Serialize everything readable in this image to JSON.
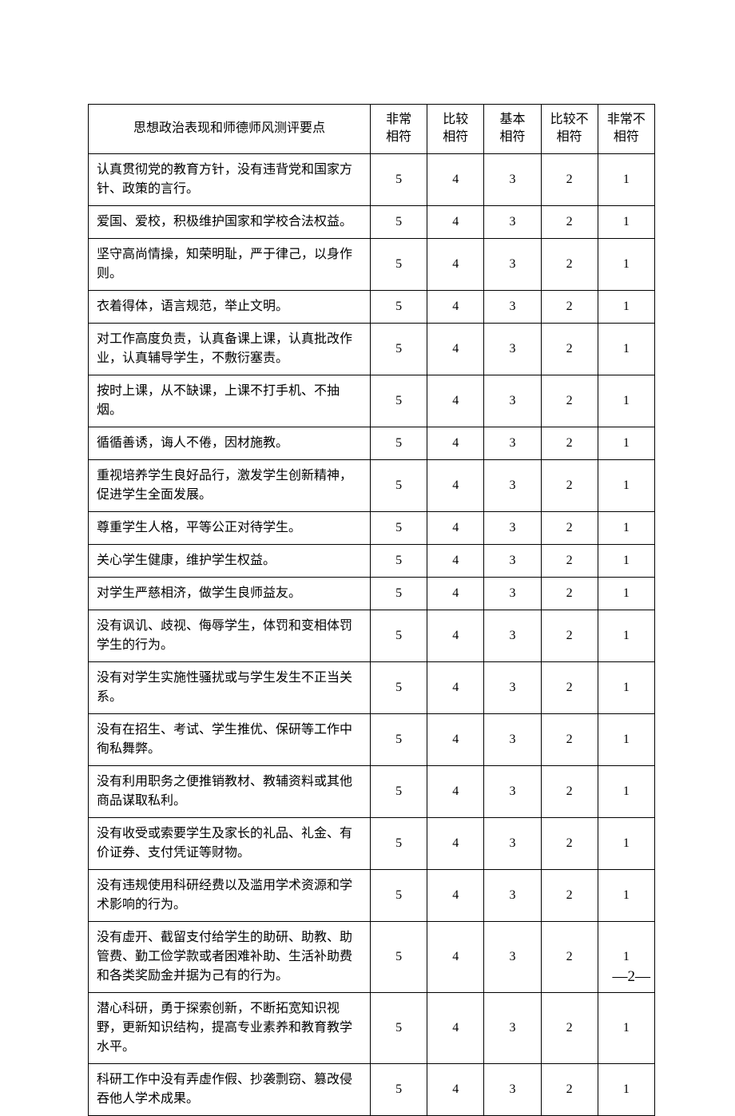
{
  "table": {
    "header_col1": "思想政治表现和师德师风测评要点",
    "rating_cols": [
      {
        "l1": "非常",
        "l2": "相符"
      },
      {
        "l1": "比较",
        "l2": "相符"
      },
      {
        "l1": "基本",
        "l2": "相符"
      },
      {
        "l1": "比较不",
        "l2": "相符"
      },
      {
        "l1": "非常不",
        "l2": "相符"
      }
    ],
    "rating_values": [
      "5",
      "4",
      "3",
      "2",
      "1"
    ],
    "rows": [
      "认真贯彻党的教育方针，没有违背党和国家方针、政策的言行。",
      "爱国、爱校，积极维护国家和学校合法权益。",
      "坚守高尚情操，知荣明耻，严于律己，以身作则。",
      "衣着得体，语言规范，举止文明。",
      "对工作高度负责，认真备课上课，认真批改作业，认真辅导学生，不敷衍塞责。",
      "按时上课，从不缺课，上课不打手机、不抽烟。",
      "循循善诱，诲人不倦，因材施教。",
      "重视培养学生良好品行，激发学生创新精神，促进学生全面发展。",
      "尊重学生人格，平等公正对待学生。",
      "关心学生健康，维护学生权益。",
      "对学生严慈相济，做学生良师益友。",
      "没有讽讥、歧视、侮辱学生，体罚和变相体罚学生的行为。",
      "没有对学生实施性骚扰或与学生发生不正当关系。",
      "没有在招生、考试、学生推优、保研等工作中徇私舞弊。",
      "没有利用职务之便推销教材、教辅资料或其他商品谋取私利。",
      "没有收受或索要学生及家长的礼品、礼金、有价证券、支付凭证等财物。",
      "没有违规使用科研经费以及滥用学术资源和学术影响的行为。",
      "没有虚开、截留支付给学生的助研、助教、助管费、勤工俭学款或者困难补助、生活补助费和各类奖励金并据为己有的行为。",
      "潜心科研，勇于探索创新，不断拓宽知识视野，更新知识结构，提高专业素养和教育教学水平。",
      "科研工作中没有弄虚作假、抄袭剽窃、篡改侵吞他人学术成果。"
    ]
  },
  "page_number": "—2—",
  "style": {
    "border_color": "#000000",
    "text_color": "#000000",
    "background_color": "#ffffff",
    "font_size_cell": 16,
    "font_size_pagenum": 19,
    "col_widths": {
      "crit": 352,
      "rating": 71
    }
  }
}
